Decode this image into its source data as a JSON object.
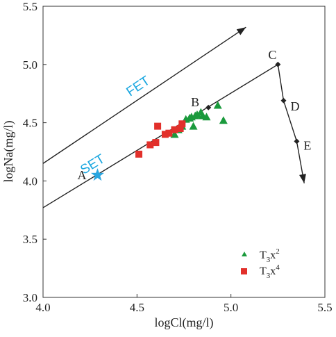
{
  "chart_data": {
    "type": "scatter",
    "title": "",
    "xlabel": "logCl(mg/l)",
    "ylabel": "logNa(mg/l)",
    "xlim": [
      4.0,
      5.5
    ],
    "ylim": [
      3.0,
      5.5
    ],
    "xticks": [
      "4.0",
      "4.5",
      "5.0",
      "5.5"
    ],
    "yticks": [
      "3.0",
      "3.5",
      "4.0",
      "4.5",
      "5.0",
      "5.5"
    ],
    "grid": false,
    "legend_position": "bottom-right",
    "series": [
      {
        "name": "T3x2",
        "legend_parts": {
          "base": "T",
          "sub": "3",
          "mid": "x",
          "sup": "2"
        },
        "marker": "triangle",
        "color": "#1a9a3c",
        "x": [
          4.7,
          4.72,
          4.74,
          4.76,
          4.78,
          4.79,
          4.8,
          4.81,
          4.82,
          4.84,
          4.85,
          4.87,
          4.93,
          4.96
        ],
        "y": [
          4.4,
          4.44,
          4.47,
          4.53,
          4.54,
          4.55,
          4.47,
          4.56,
          4.57,
          4.59,
          4.56,
          4.55,
          4.65,
          4.52
        ]
      },
      {
        "name": "T3x4",
        "legend_parts": {
          "base": "T",
          "sub": "3",
          "mid": "x",
          "sup": "4"
        },
        "marker": "square",
        "color": "#e2302b",
        "x": [
          4.51,
          4.57,
          4.6,
          4.61,
          4.65,
          4.67,
          4.7,
          4.73,
          4.74
        ],
        "y": [
          4.23,
          4.31,
          4.33,
          4.47,
          4.4,
          4.41,
          4.44,
          4.45,
          4.49
        ]
      }
    ],
    "trend_lines": [
      {
        "label": "FET",
        "x": [
          4.0,
          5.08
        ],
        "y": [
          4.15,
          5.32
        ]
      },
      {
        "label": "SET",
        "x": [
          4.0,
          5.25,
          5.28,
          5.35,
          5.39
        ],
        "y": [
          3.77,
          5.0,
          4.69,
          4.34,
          3.98
        ]
      }
    ],
    "point_labels": [
      {
        "label": "A",
        "x": 4.29,
        "y": 4.05,
        "marker": "star",
        "color": "#2aa6e0"
      },
      {
        "label": "B",
        "x": 4.88,
        "y": 4.63,
        "marker": "diamond",
        "color": "#222222"
      },
      {
        "label": "C",
        "x": 5.25,
        "y": 5.0,
        "marker": "diamond",
        "color": "#222222"
      },
      {
        "label": "D",
        "x": 5.28,
        "y": 4.69,
        "marker": "diamond",
        "color": "#222222"
      },
      {
        "label": "E",
        "x": 5.35,
        "y": 4.34,
        "marker": "diamond",
        "color": "#222222"
      }
    ]
  }
}
